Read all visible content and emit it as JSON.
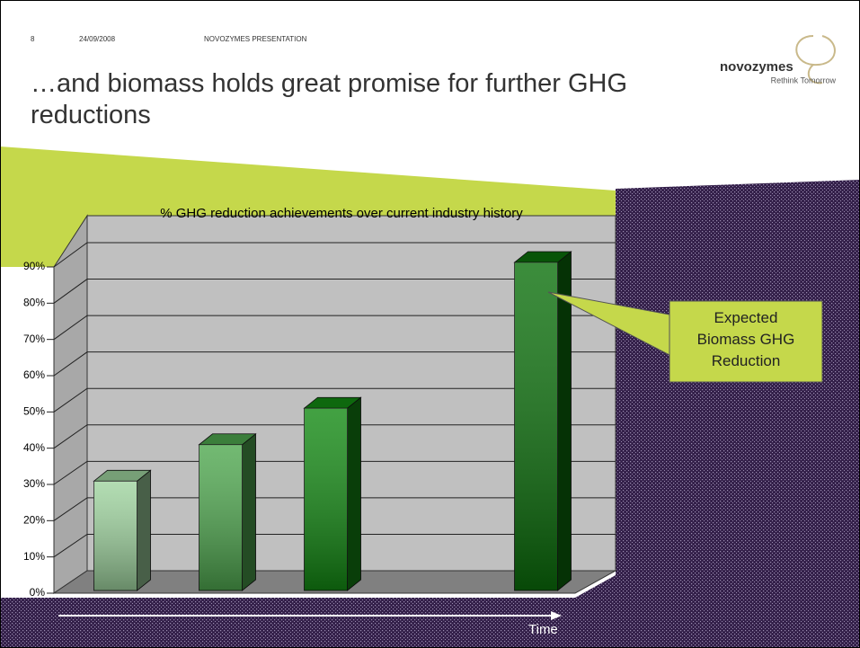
{
  "header": {
    "page": "8",
    "date": "24/09/2008",
    "label": "NOVOZYMES PRESENTATION",
    "title": "…and biomass holds great promise for further GHG reductions"
  },
  "logo": {
    "name": "novozymes",
    "tagline": "Rethink Tomorrow"
  },
  "chart_data": {
    "type": "bar3d",
    "title": "% GHG reduction achievements over current industry history",
    "categories": [
      null,
      null,
      null,
      null,
      null
    ],
    "values": [
      30,
      40,
      50,
      null,
      90
    ],
    "colors": [
      "#9fd49f",
      "#4fa84f",
      "#138a13",
      null,
      "#0b700b"
    ],
    "ylim": [
      0,
      90
    ],
    "yticks": [
      {
        "value": 0,
        "label": "0%"
      },
      {
        "value": 10,
        "label": "10%"
      },
      {
        "value": 20,
        "label": "20%"
      },
      {
        "value": 30,
        "label": "30%"
      },
      {
        "value": 40,
        "label": "40%"
      },
      {
        "value": 50,
        "label": "50%"
      },
      {
        "value": 60,
        "label": "60%"
      },
      {
        "value": 70,
        "label": "70%"
      },
      {
        "value": 80,
        "label": "80%"
      },
      {
        "value": 90,
        "label": "90%"
      }
    ],
    "grid": true,
    "xlabel": "Time",
    "annotation": "Expected Biomass GHG Reduction"
  }
}
